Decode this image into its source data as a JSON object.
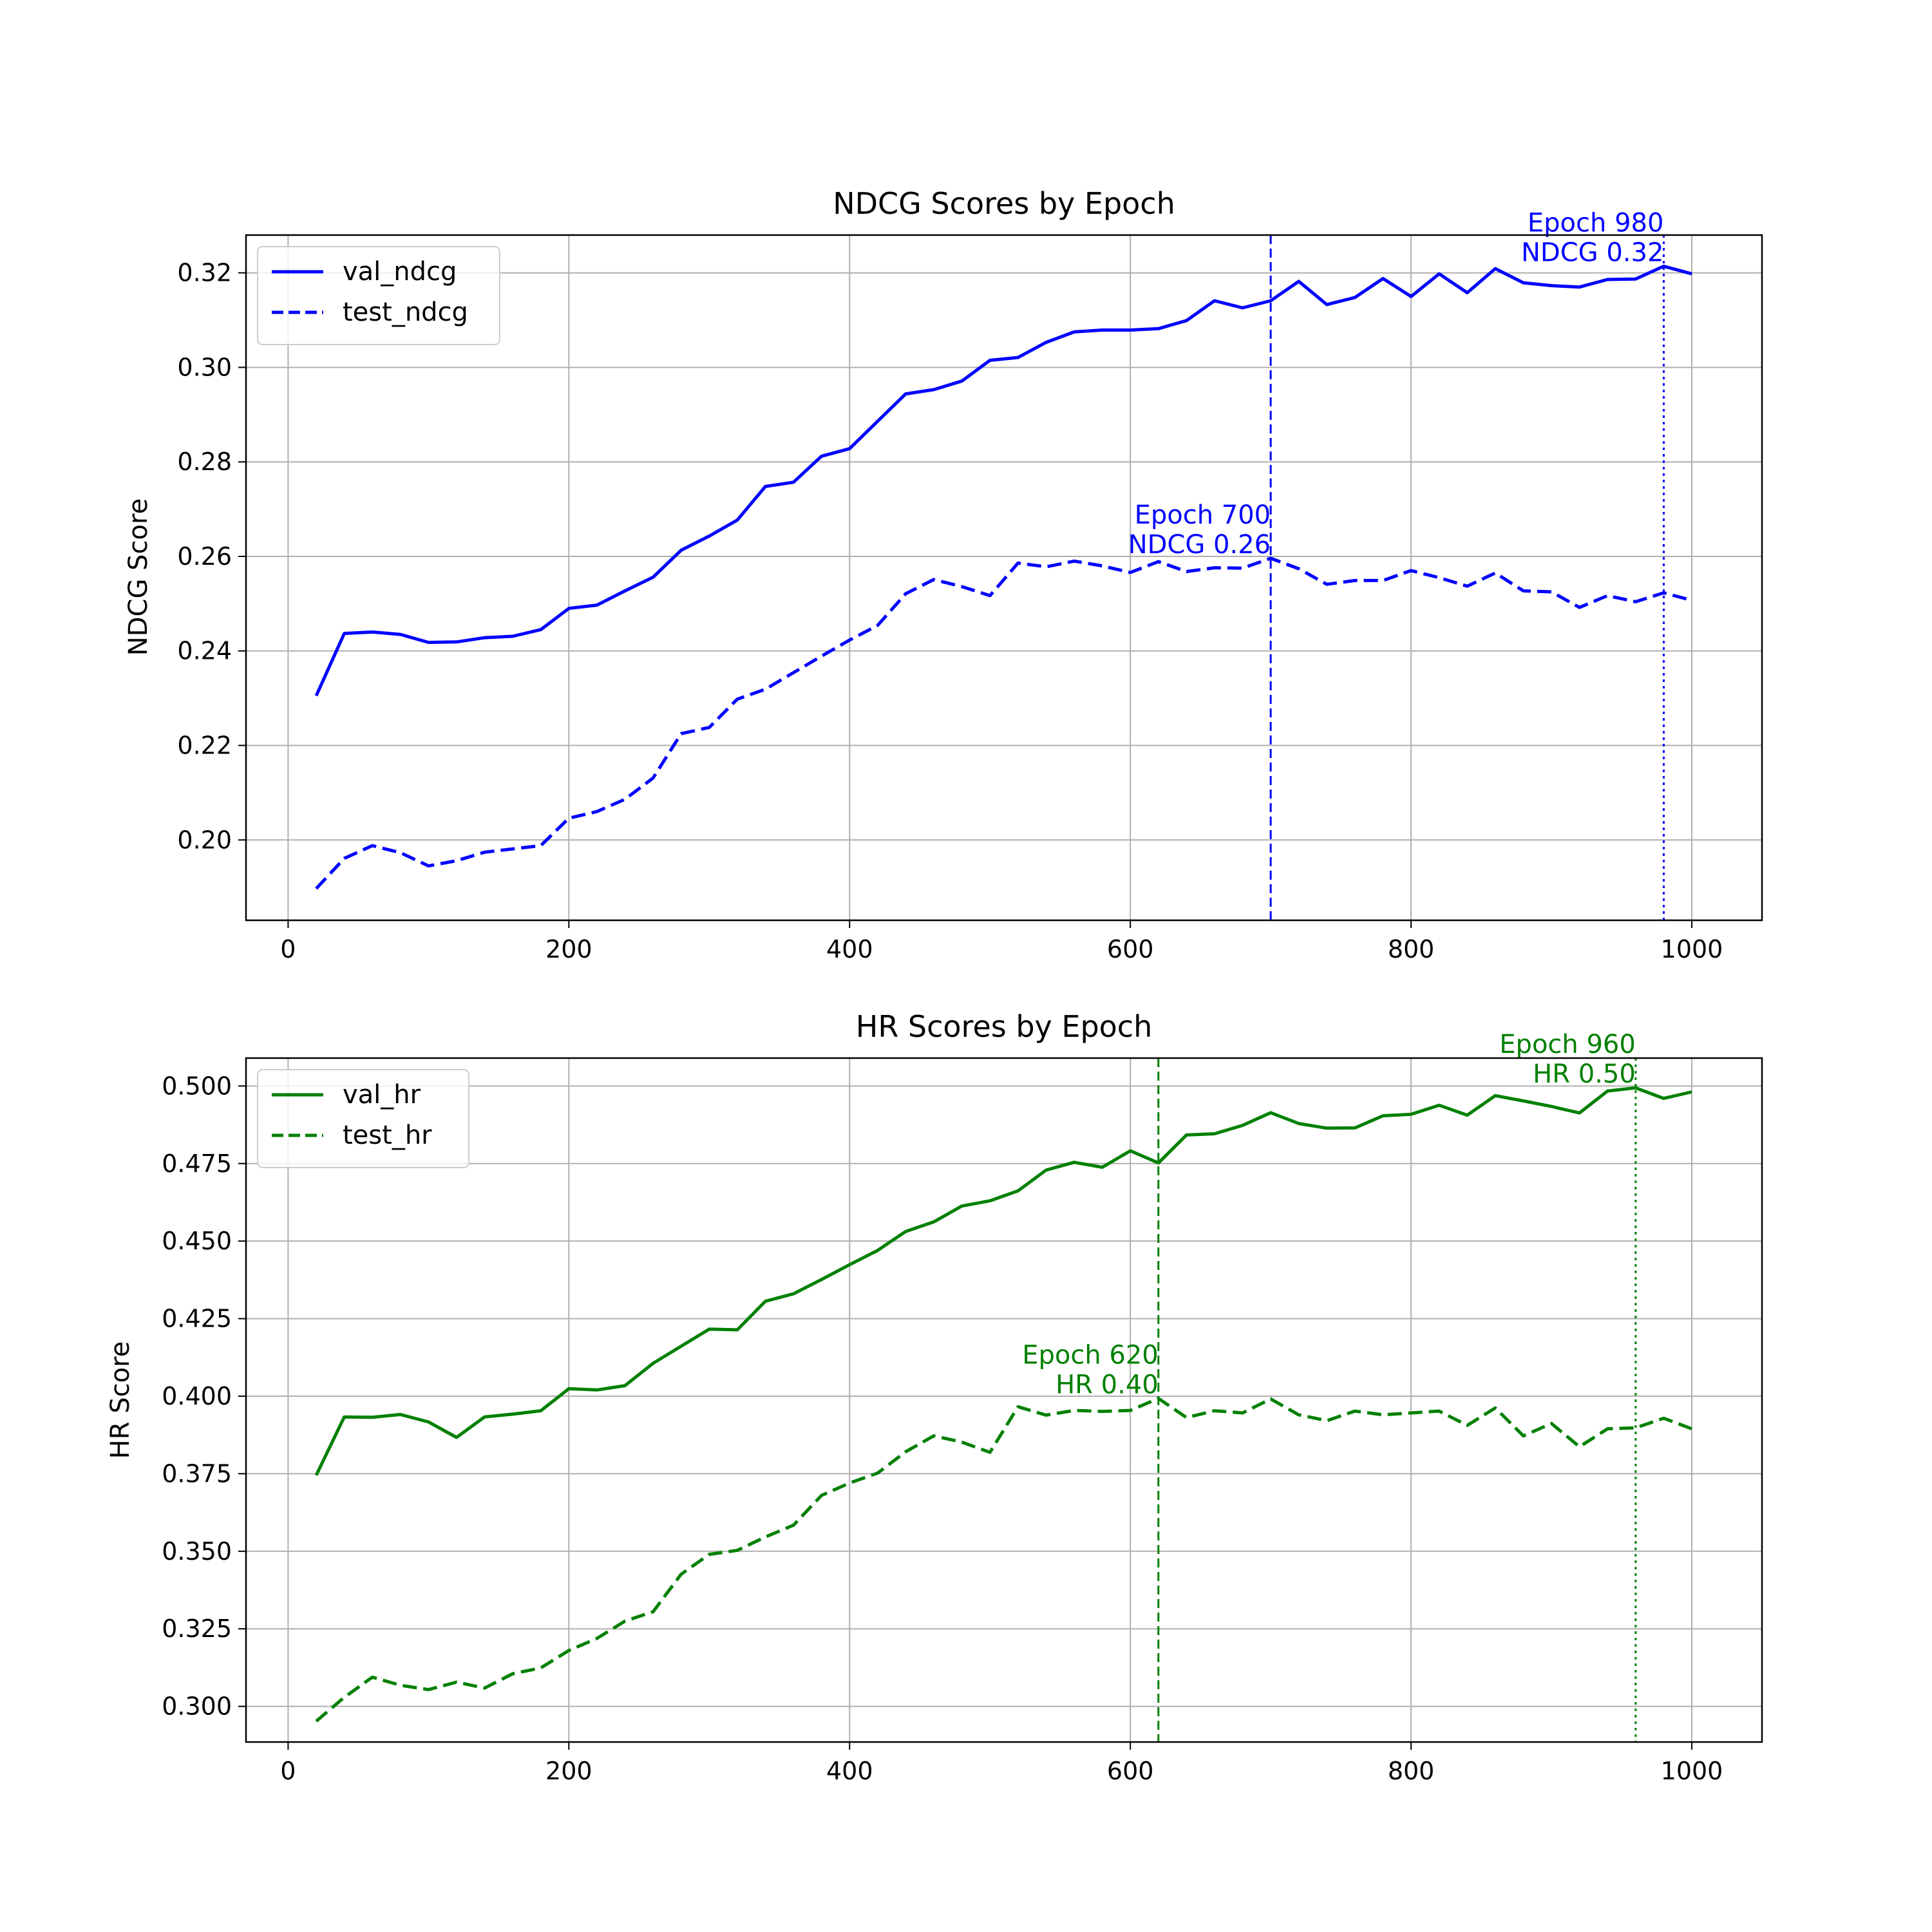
{
  "chart_data": [
    {
      "type": "line",
      "title": "NDCG Scores by Epoch",
      "xlabel": "",
      "ylabel": "NDCG Score",
      "xlim": [
        -30,
        1050
      ],
      "ylim": [
        0.183,
        0.328
      ],
      "xticks": [
        0,
        200,
        400,
        600,
        800,
        1000
      ],
      "yticks": [
        0.2,
        0.22,
        0.24,
        0.26,
        0.28,
        0.3,
        0.32
      ],
      "ytick_format": 2,
      "grid": true,
      "legend": "upper-left",
      "x": [
        20,
        40,
        60,
        80,
        100,
        120,
        140,
        160,
        180,
        200,
        220,
        240,
        260,
        280,
        300,
        320,
        340,
        360,
        380,
        400,
        420,
        440,
        460,
        480,
        500,
        520,
        540,
        560,
        580,
        600,
        620,
        640,
        660,
        680,
        700,
        720,
        740,
        760,
        780,
        800,
        820,
        840,
        860,
        880,
        900,
        920,
        940,
        960,
        980,
        1000
      ],
      "series": [
        {
          "name": "val_ndcg",
          "color": "#0000ff",
          "style": "solid",
          "values": [
            0.2305,
            0.2437,
            0.244,
            0.2435,
            0.2418,
            0.2419,
            0.2428,
            0.2431,
            0.2445,
            0.249,
            0.2497,
            0.2527,
            0.2556,
            0.2613,
            0.2643,
            0.2677,
            0.2748,
            0.2757,
            0.2812,
            0.2828,
            0.2886,
            0.2944,
            0.2953,
            0.2971,
            0.3015,
            0.3021,
            0.3053,
            0.3075,
            0.3079,
            0.3079,
            0.3082,
            0.3099,
            0.3141,
            0.3126,
            0.3141,
            0.3182,
            0.3133,
            0.3148,
            0.3188,
            0.315,
            0.3198,
            0.3158,
            0.3209,
            0.3179,
            0.3173,
            0.317,
            0.3186,
            0.3187,
            0.3214,
            0.3198
          ]
        },
        {
          "name": "test_ndcg",
          "color": "#0000ff",
          "style": "dashed",
          "values": [
            0.1897,
            0.1961,
            0.1988,
            0.1973,
            0.1945,
            0.1956,
            0.1974,
            0.1981,
            0.1988,
            0.2046,
            0.206,
            0.2086,
            0.2131,
            0.2225,
            0.2238,
            0.2298,
            0.2319,
            0.2354,
            0.2389,
            0.2423,
            0.2454,
            0.2521,
            0.2551,
            0.2536,
            0.2517,
            0.2586,
            0.2578,
            0.259,
            0.258,
            0.2566,
            0.2589,
            0.2568,
            0.2576,
            0.2575,
            0.2596,
            0.2574,
            0.2541,
            0.2549,
            0.2549,
            0.257,
            0.2555,
            0.2537,
            0.2565,
            0.2527,
            0.2525,
            0.2492,
            0.2517,
            0.2504,
            0.2523,
            0.2507
          ]
        }
      ],
      "vlines": [
        {
          "x": 700,
          "style": "dashed",
          "color": "#0000ff"
        },
        {
          "x": 980,
          "style": "dotted",
          "color": "#0000ff"
        }
      ],
      "annotations": [
        {
          "x": 700,
          "y": 0.2596,
          "line1": "Epoch 700",
          "line2": "NDCG 0.26",
          "color": "#0000ff"
        },
        {
          "x": 980,
          "y": 0.3214,
          "line1": "Epoch 980",
          "line2": "NDCG 0.32",
          "color": "#0000ff"
        }
      ]
    },
    {
      "type": "line",
      "title": "HR Scores by Epoch",
      "xlabel": "",
      "ylabel": "HR Score",
      "xlim": [
        -30,
        1050
      ],
      "ylim": [
        0.2885,
        0.509
      ],
      "xticks": [
        0,
        200,
        400,
        600,
        800,
        1000
      ],
      "yticks": [
        0.3,
        0.325,
        0.35,
        0.375,
        0.4,
        0.425,
        0.45,
        0.475,
        0.5
      ],
      "ytick_format": 3,
      "grid": true,
      "legend": "upper-left",
      "x": [
        20,
        40,
        60,
        80,
        100,
        120,
        140,
        160,
        180,
        200,
        220,
        240,
        260,
        280,
        300,
        320,
        340,
        360,
        380,
        400,
        420,
        440,
        460,
        480,
        500,
        520,
        540,
        560,
        580,
        600,
        620,
        640,
        660,
        680,
        700,
        720,
        740,
        760,
        780,
        800,
        820,
        840,
        860,
        880,
        900,
        920,
        940,
        960,
        980,
        1000
      ],
      "series": [
        {
          "name": "val_hr",
          "color": "#008000",
          "style": "solid",
          "values": [
            0.3745,
            0.3933,
            0.3932,
            0.3941,
            0.3917,
            0.3867,
            0.3933,
            0.3942,
            0.3953,
            0.4024,
            0.402,
            0.4034,
            0.4106,
            0.4161,
            0.4216,
            0.4214,
            0.4306,
            0.433,
            0.4376,
            0.4424,
            0.447,
            0.4531,
            0.4562,
            0.4613,
            0.463,
            0.4662,
            0.4729,
            0.4754,
            0.4738,
            0.4791,
            0.4752,
            0.4842,
            0.4846,
            0.4873,
            0.4914,
            0.4879,
            0.4864,
            0.4865,
            0.4904,
            0.4909,
            0.4938,
            0.4906,
            0.4969,
            0.4952,
            0.4934,
            0.4913,
            0.4984,
            0.4994,
            0.496,
            0.4981
          ]
        },
        {
          "name": "test_hr",
          "color": "#008000",
          "style": "dashed",
          "values": [
            0.2952,
            0.3029,
            0.3094,
            0.3068,
            0.3054,
            0.3078,
            0.3059,
            0.3105,
            0.3124,
            0.318,
            0.3219,
            0.3275,
            0.3305,
            0.3426,
            0.349,
            0.3503,
            0.3546,
            0.3584,
            0.368,
            0.372,
            0.3752,
            0.3821,
            0.3872,
            0.3852,
            0.3819,
            0.3966,
            0.3939,
            0.3954,
            0.3951,
            0.3954,
            0.3993,
            0.3931,
            0.3953,
            0.3946,
            0.3991,
            0.394,
            0.3921,
            0.3952,
            0.394,
            0.3946,
            0.3952,
            0.3906,
            0.3962,
            0.3872,
            0.3912,
            0.3837,
            0.3895,
            0.3898,
            0.3929,
            0.3895
          ]
        }
      ],
      "vlines": [
        {
          "x": 620,
          "style": "dashed",
          "color": "#008000"
        },
        {
          "x": 960,
          "style": "dotted",
          "color": "#008000"
        }
      ],
      "annotations": [
        {
          "x": 620,
          "y": 0.3993,
          "line1": "Epoch 620",
          "line2": "HR 0.40",
          "color": "#008000"
        },
        {
          "x": 960,
          "y": 0.4994,
          "line1": "Epoch 960",
          "line2": "HR 0.50",
          "color": "#008000"
        }
      ]
    }
  ]
}
